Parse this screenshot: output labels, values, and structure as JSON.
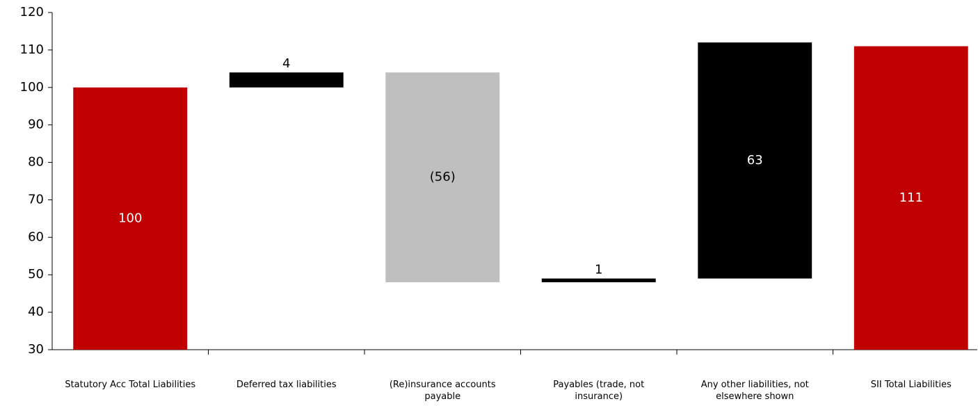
{
  "chart_data": {
    "type": "waterfall",
    "categories": [
      "Statutory Acc Total Liabilities",
      "Deferred tax liabilities",
      "(Re)insurance accounts payable",
      "Payables (trade, not insurance)",
      "Any other liabilities, not elsewhere shown",
      "SII Total Liabilities"
    ],
    "values": [
      100,
      4,
      -56,
      1,
      63,
      111
    ],
    "value_labels": [
      "100",
      "4",
      "(56)",
      "1",
      "63",
      "111"
    ],
    "is_total": [
      true,
      false,
      false,
      false,
      false,
      true
    ],
    "colors": [
      "#c00000",
      "#000000",
      "#bfbfbf",
      "#000000",
      "#000000",
      "#c00000"
    ],
    "ylim": [
      30,
      120
    ],
    "yticks": [
      30,
      40,
      50,
      60,
      70,
      80,
      90,
      100,
      110,
      120
    ],
    "grid": false
  }
}
